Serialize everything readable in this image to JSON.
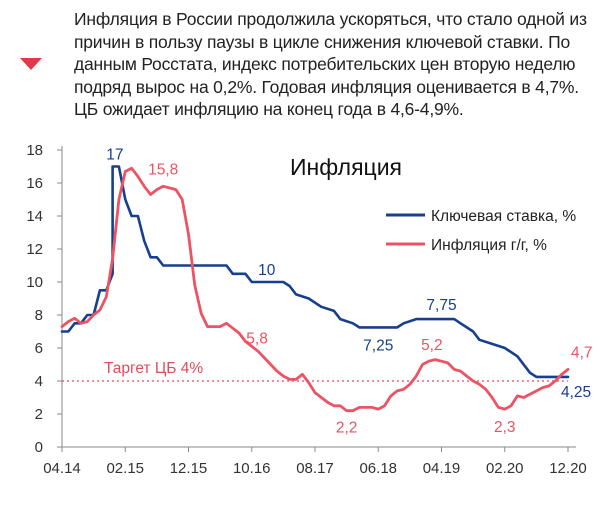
{
  "lead": {
    "text": "Инфляция в России продолжила ускоряться, что стало одной из причин в пользу паузы в цикле снижения ключевой ставки. По данным Росстата, индекс потребительских цен вторую неделю подряд вырос на 0,2%. Годовая инфляция оценивается в 4,7%. ЦБ ожидает инфляцию на конец года в 4,6-4,9%.",
    "bullet_icon": "triangle-down-icon"
  },
  "colors": {
    "rate": "#173f8d",
    "inflation": "#ec5364",
    "target": "#e24b5c",
    "bullet": "#e0394a"
  },
  "chart_data": {
    "type": "line",
    "title": "Инфляция",
    "xlabel": "",
    "ylabel": "",
    "x_ticks": [
      "04.14",
      "02.15",
      "12.15",
      "10.16",
      "08.17",
      "06.18",
      "04.19",
      "02.20",
      "12.20"
    ],
    "y_ticks": [
      "0",
      "2",
      "4",
      "6",
      "8",
      "10",
      "12",
      "14",
      "16",
      "18"
    ],
    "ylim": [
      0,
      18
    ],
    "xlim": [
      "2014-04",
      "2020-12"
    ],
    "grid": false,
    "legend_position": "top-right",
    "target": {
      "label": "Таргет ЦБ 4%",
      "value": 4
    },
    "series": [
      {
        "name": "Ключевая ставка, %",
        "color_key": "rate",
        "points": [
          [
            "2014-04",
            7.0
          ],
          [
            "2014-05",
            7.0
          ],
          [
            "2014-06",
            7.5
          ],
          [
            "2014-07",
            7.5
          ],
          [
            "2014-08",
            8.0
          ],
          [
            "2014-09",
            8.0
          ],
          [
            "2014-10",
            9.5
          ],
          [
            "2014-11",
            9.5
          ],
          [
            "2014-12",
            10.5
          ],
          [
            "2014-12",
            17.0
          ],
          [
            "2015-01",
            17.0
          ],
          [
            "2015-02",
            15.0
          ],
          [
            "2015-03",
            14.0
          ],
          [
            "2015-04",
            14.0
          ],
          [
            "2015-05",
            12.5
          ],
          [
            "2015-06",
            11.5
          ],
          [
            "2015-07",
            11.5
          ],
          [
            "2015-08",
            11.0
          ],
          [
            "2016-06",
            11.0
          ],
          [
            "2016-07",
            10.5
          ],
          [
            "2016-09",
            10.5
          ],
          [
            "2016-10",
            10.0
          ],
          [
            "2017-03",
            10.0
          ],
          [
            "2017-04",
            9.75
          ],
          [
            "2017-05",
            9.25
          ],
          [
            "2017-07",
            9.0
          ],
          [
            "2017-09",
            8.5
          ],
          [
            "2017-11",
            8.25
          ],
          [
            "2017-12",
            7.75
          ],
          [
            "2018-02",
            7.5
          ],
          [
            "2018-03",
            7.25
          ],
          [
            "2018-09",
            7.25
          ],
          [
            "2018-10",
            7.5
          ],
          [
            "2018-12",
            7.75
          ],
          [
            "2019-06",
            7.75
          ],
          [
            "2019-07",
            7.5
          ],
          [
            "2019-08",
            7.25
          ],
          [
            "2019-09",
            7.0
          ],
          [
            "2019-10",
            6.5
          ],
          [
            "2019-12",
            6.25
          ],
          [
            "2020-02",
            6.0
          ],
          [
            "2020-04",
            5.5
          ],
          [
            "2020-06",
            4.5
          ],
          [
            "2020-07",
            4.25
          ],
          [
            "2020-12",
            4.25
          ]
        ]
      },
      {
        "name": "Инфляция г/г, %",
        "color_key": "inflation",
        "points": [
          [
            "2014-04",
            7.3
          ],
          [
            "2014-05",
            7.6
          ],
          [
            "2014-06",
            7.8
          ],
          [
            "2014-07",
            7.5
          ],
          [
            "2014-08",
            7.6
          ],
          [
            "2014-09",
            8.0
          ],
          [
            "2014-10",
            8.3
          ],
          [
            "2014-11",
            9.1
          ],
          [
            "2014-12",
            11.4
          ],
          [
            "2015-01",
            15.0
          ],
          [
            "2015-02",
            16.7
          ],
          [
            "2015-03",
            16.9
          ],
          [
            "2015-04",
            16.4
          ],
          [
            "2015-05",
            15.8
          ],
          [
            "2015-06",
            15.3
          ],
          [
            "2015-07",
            15.6
          ],
          [
            "2015-08",
            15.8
          ],
          [
            "2015-09",
            15.7
          ],
          [
            "2015-10",
            15.6
          ],
          [
            "2015-11",
            15.0
          ],
          [
            "2015-12",
            12.9
          ],
          [
            "2016-01",
            9.8
          ],
          [
            "2016-02",
            8.1
          ],
          [
            "2016-03",
            7.3
          ],
          [
            "2016-04",
            7.3
          ],
          [
            "2016-05",
            7.3
          ],
          [
            "2016-06",
            7.5
          ],
          [
            "2016-07",
            7.2
          ],
          [
            "2016-08",
            6.9
          ],
          [
            "2016-09",
            6.4
          ],
          [
            "2016-10",
            6.1
          ],
          [
            "2016-11",
            5.8
          ],
          [
            "2016-12",
            5.4
          ],
          [
            "2017-01",
            5.0
          ],
          [
            "2017-02",
            4.6
          ],
          [
            "2017-03",
            4.3
          ],
          [
            "2017-04",
            4.1
          ],
          [
            "2017-05",
            4.1
          ],
          [
            "2017-06",
            4.4
          ],
          [
            "2017-07",
            3.9
          ],
          [
            "2017-08",
            3.3
          ],
          [
            "2017-09",
            3.0
          ],
          [
            "2017-10",
            2.7
          ],
          [
            "2017-11",
            2.5
          ],
          [
            "2017-12",
            2.5
          ],
          [
            "2018-01",
            2.2
          ],
          [
            "2018-02",
            2.2
          ],
          [
            "2018-03",
            2.4
          ],
          [
            "2018-04",
            2.4
          ],
          [
            "2018-05",
            2.4
          ],
          [
            "2018-06",
            2.3
          ],
          [
            "2018-07",
            2.5
          ],
          [
            "2018-08",
            3.1
          ],
          [
            "2018-09",
            3.4
          ],
          [
            "2018-10",
            3.5
          ],
          [
            "2018-11",
            3.8
          ],
          [
            "2018-12",
            4.3
          ],
          [
            "2019-01",
            5.0
          ],
          [
            "2019-02",
            5.2
          ],
          [
            "2019-03",
            5.3
          ],
          [
            "2019-04",
            5.2
          ],
          [
            "2019-05",
            5.1
          ],
          [
            "2019-06",
            4.7
          ],
          [
            "2019-07",
            4.6
          ],
          [
            "2019-08",
            4.3
          ],
          [
            "2019-09",
            4.0
          ],
          [
            "2019-10",
            3.8
          ],
          [
            "2019-11",
            3.5
          ],
          [
            "2019-12",
            3.0
          ],
          [
            "2020-01",
            2.4
          ],
          [
            "2020-02",
            2.3
          ],
          [
            "2020-03",
            2.5
          ],
          [
            "2020-04",
            3.1
          ],
          [
            "2020-05",
            3.0
          ],
          [
            "2020-06",
            3.2
          ],
          [
            "2020-07",
            3.4
          ],
          [
            "2020-08",
            3.6
          ],
          [
            "2020-09",
            3.7
          ],
          [
            "2020-10",
            4.0
          ],
          [
            "2020-11",
            4.4
          ],
          [
            "2020-12",
            4.7
          ]
        ]
      }
    ],
    "annotations": [
      {
        "text": "17",
        "series": "Ключевая ставка, %",
        "x": "2015-01",
        "y": 17.0
      },
      {
        "text": "10",
        "series": "Ключевая ставка, %",
        "x": "2017-01",
        "y": 10.0
      },
      {
        "text": "7,25",
        "series": "Ключевая ставка, %",
        "x": "2018-06",
        "y": 7.25
      },
      {
        "text": "7,75",
        "series": "Ключевая ставка, %",
        "x": "2019-04",
        "y": 7.75
      },
      {
        "text": "4,25",
        "series": "Ключевая ставка, %",
        "x": "2020-12",
        "y": 4.25
      },
      {
        "text": "15,8",
        "series": "Инфляция г/г, %",
        "x": "2015-08",
        "y": 15.8
      },
      {
        "text": "5,8",
        "series": "Инфляция г/г, %",
        "x": "2016-11",
        "y": 5.8
      },
      {
        "text": "2,2",
        "series": "Инфляция г/г, %",
        "x": "2018-01",
        "y": 2.2
      },
      {
        "text": "5,2",
        "series": "Инфляция г/г, %",
        "x": "2019-02",
        "y": 5.2
      },
      {
        "text": "2,3",
        "series": "Инфляция г/г, %",
        "x": "2020-02",
        "y": 2.3
      },
      {
        "text": "4,7",
        "series": "Инфляция г/г, %",
        "x": "2020-12",
        "y": 4.7
      }
    ]
  }
}
